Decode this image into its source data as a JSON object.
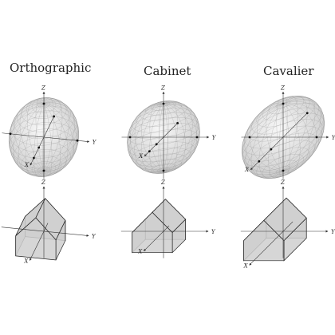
{
  "panels": [
    {
      "title": "Orthographic",
      "axes": {
        "x": "X",
        "y": "Y",
        "z": "Z"
      }
    },
    {
      "title": "Cabinet",
      "axes": {
        "x": "X",
        "y": "Y",
        "z": "Z"
      }
    },
    {
      "title": "Cavalier",
      "axes": {
        "x": "X",
        "y": "Y",
        "z": "Z"
      }
    }
  ],
  "colors": {
    "sphere_fill": "#e4e4e4",
    "sphere_mesh": "#8a8a8a",
    "house_fill": "#cfcfcf",
    "axis": "#333333"
  }
}
